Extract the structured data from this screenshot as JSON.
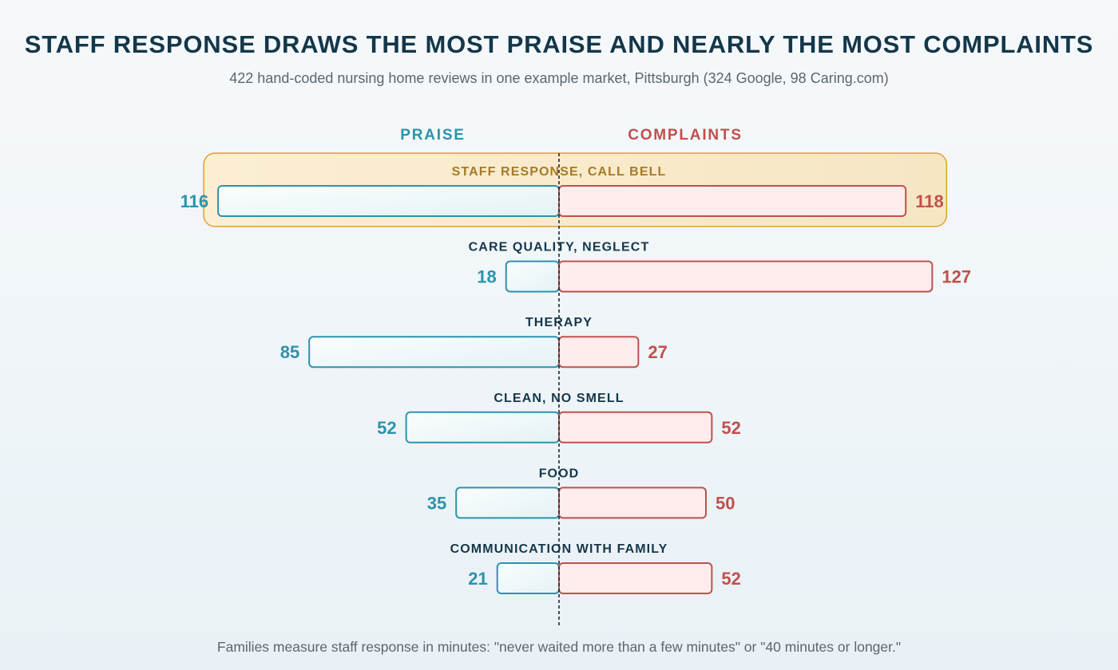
{
  "title": "STAFF RESPONSE DRAWS THE MOST PRAISE AND NEARLY THE MOST COMPLAINTS",
  "subtitle": "422 hand-coded nursing home reviews in one example market, Pittsburgh (324 Google, 98 Caring.com)",
  "footnote": "Families measure staff response in minutes: \"never waited more than a few minutes\" or \"40 minutes or longer.\"",
  "colors": {
    "praise": "#2b93ad",
    "complaints": "#c0504d",
    "highlight_fill": "#f8e6c0",
    "highlight_border": "#e0a030",
    "highlight_label": "#a67a28",
    "category_label": "#14374a"
  },
  "chart_data": {
    "type": "bar",
    "orientation": "horizontal-diverging",
    "series": [
      {
        "name": "PRAISE",
        "values": [
          116,
          18,
          85,
          52,
          35,
          21
        ]
      },
      {
        "name": "COMPLAINTS",
        "values": [
          118,
          127,
          27,
          52,
          50,
          52
        ]
      }
    ],
    "categories": [
      "STAFF RESPONSE, CALL BELL",
      "CARE QUALITY, NEGLECT",
      "THERAPY",
      "CLEAN, NO SMELL",
      "FOOD",
      "COMMUNICATION WITH FAMILY"
    ],
    "highlighted_category": "STAFF RESPONSE, CALL BELL",
    "center_line": "dashed",
    "grid": false
  }
}
